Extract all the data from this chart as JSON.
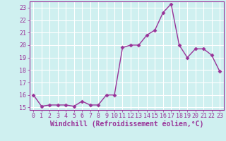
{
  "x": [
    0,
    1,
    2,
    3,
    4,
    5,
    6,
    7,
    8,
    9,
    10,
    11,
    12,
    13,
    14,
    15,
    16,
    17,
    18,
    19,
    20,
    21,
    22,
    23
  ],
  "y": [
    16.0,
    15.1,
    15.2,
    15.2,
    15.2,
    15.1,
    15.5,
    15.2,
    15.2,
    16.0,
    16.0,
    19.8,
    20.0,
    20.0,
    20.8,
    21.2,
    22.6,
    23.3,
    20.0,
    19.0,
    19.7,
    19.7,
    19.2,
    17.9
  ],
  "line_color": "#993399",
  "marker": "D",
  "marker_size": 2.5,
  "bg_color": "#cff0f0",
  "grid_color": "#ffffff",
  "xlabel": "Windchill (Refroidissement éolien,°C)",
  "ylim_min": 14.8,
  "ylim_max": 23.5,
  "xlim_min": -0.5,
  "xlim_max": 23.5,
  "yticks": [
    15,
    16,
    17,
    18,
    19,
    20,
    21,
    22,
    23
  ],
  "xticks": [
    0,
    1,
    2,
    3,
    4,
    5,
    6,
    7,
    8,
    9,
    10,
    11,
    12,
    13,
    14,
    15,
    16,
    17,
    18,
    19,
    20,
    21,
    22,
    23
  ],
  "color": "#993399",
  "tick_fontsize": 6,
  "xlabel_fontsize": 7,
  "linewidth": 1.0
}
